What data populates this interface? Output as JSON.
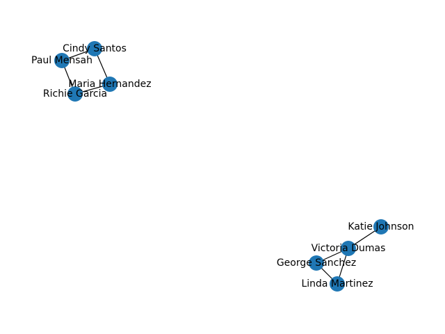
{
  "graph": {
    "node_color": "#1f77b4",
    "edge_color": "#000000",
    "nodes": [
      {
        "id": "cindy",
        "label": "Cindy Santos"
      },
      {
        "id": "paul",
        "label": "Paul Mensah"
      },
      {
        "id": "maria",
        "label": "Maria Hernandez"
      },
      {
        "id": "richie",
        "label": "Richie Garcia"
      },
      {
        "id": "katie",
        "label": "Katie Johnson"
      },
      {
        "id": "victoria",
        "label": "Victoria Dumas"
      },
      {
        "id": "george",
        "label": "George Sanchez"
      },
      {
        "id": "linda",
        "label": "Linda Martinez"
      }
    ],
    "edges": [
      [
        "paul",
        "cindy"
      ],
      [
        "cindy",
        "maria"
      ],
      [
        "paul",
        "richie"
      ],
      [
        "richie",
        "maria"
      ],
      [
        "katie",
        "victoria"
      ],
      [
        "victoria",
        "george"
      ],
      [
        "victoria",
        "linda"
      ],
      [
        "george",
        "linda"
      ]
    ]
  }
}
